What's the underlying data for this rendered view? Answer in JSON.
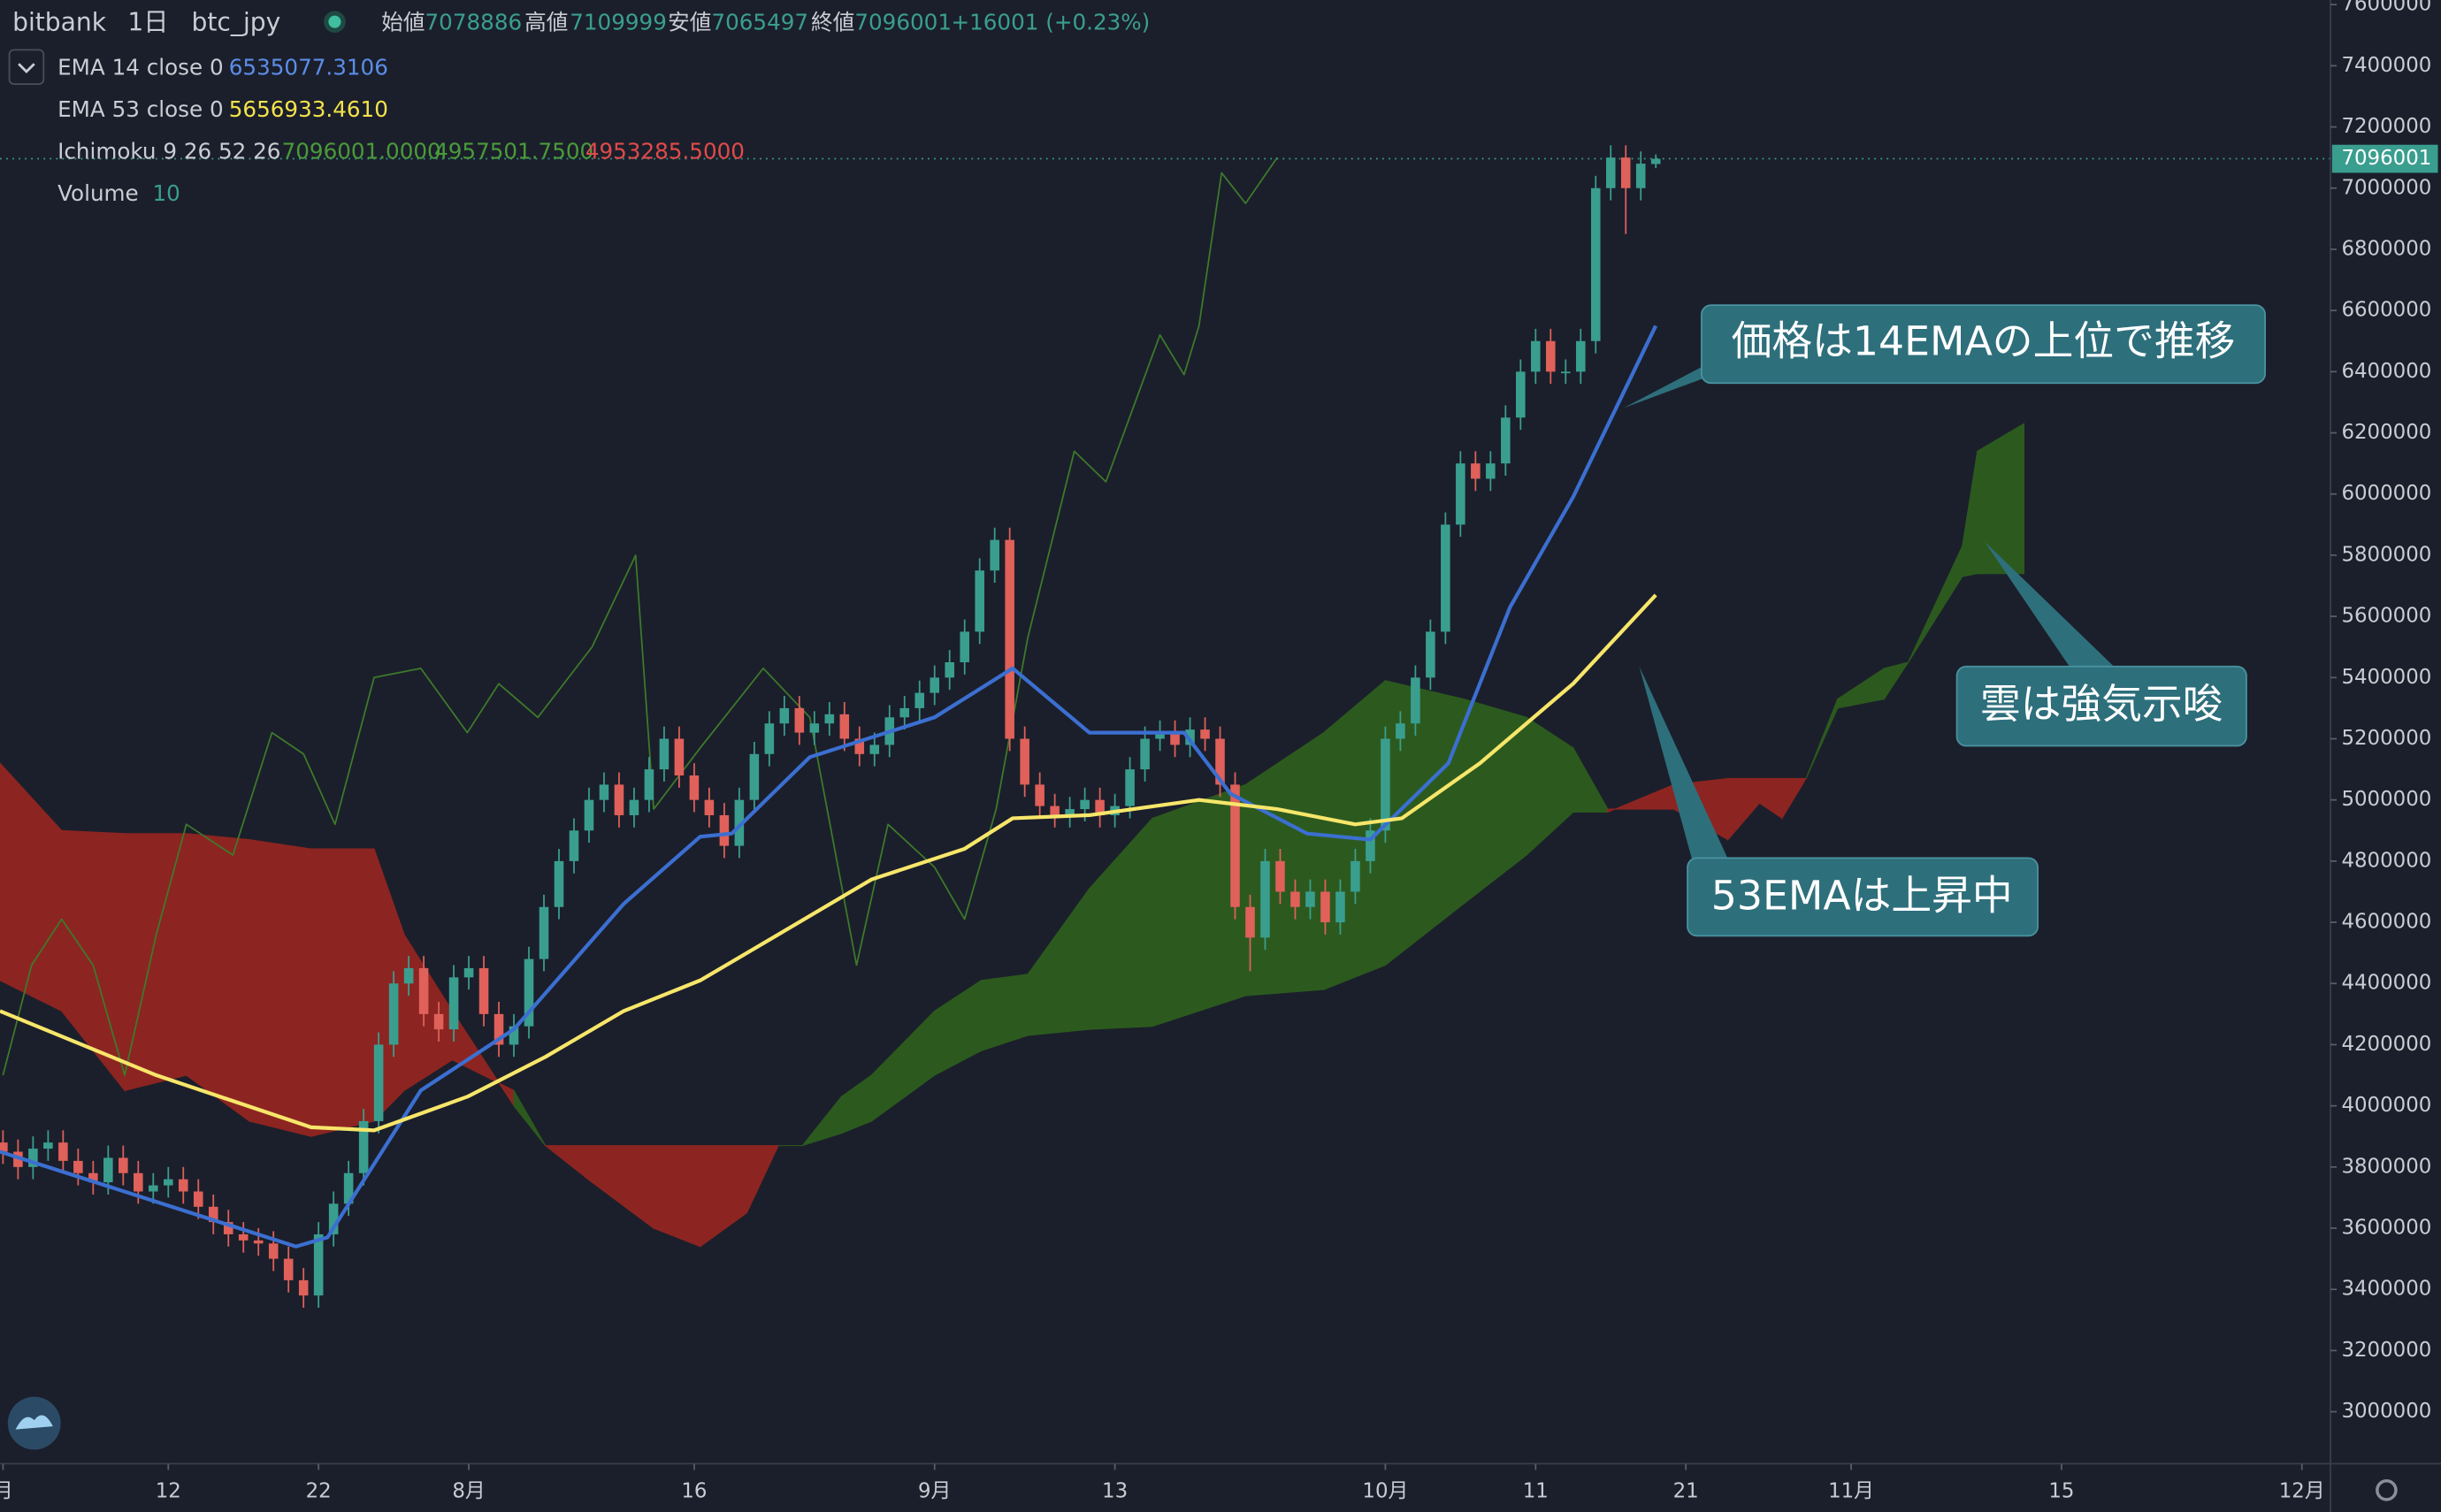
{
  "chart_data": {
    "type": "candlestick",
    "header": {
      "exchange": "bitbank",
      "interval": "1日",
      "symbol": "btc_jpy",
      "open_label": "始値",
      "open": "7078886",
      "high_label": "高値",
      "high": "7109999",
      "low_label": "安値",
      "low": "7065497",
      "close_label": "終値",
      "close": "7096001",
      "change": "+16001 (+0.23%)"
    },
    "legend": {
      "ema14": {
        "name": "EMA 14 close 0",
        "value": "6535077.3106"
      },
      "ema53": {
        "name": "EMA 53 close 0",
        "value": "5656933.4610"
      },
      "ichimoku": {
        "name": "Ichimoku 9 26 52 26",
        "values": [
          "7096001.0000",
          "4957501.7500",
          "4953285.5000"
        ]
      },
      "volume": {
        "name": "Volume",
        "value": "10"
      }
    },
    "up_color": "#3a9e8f",
    "down_color": "#e0605a",
    "x": [
      0,
      1,
      2,
      3,
      4,
      5,
      6,
      7,
      8,
      9,
      10,
      11,
      12,
      13,
      14,
      15,
      16,
      17,
      18,
      19,
      20,
      21,
      22,
      23,
      24,
      25,
      26,
      27,
      28,
      29,
      30,
      31,
      32,
      33,
      34,
      35,
      36,
      37,
      38,
      39,
      40,
      41,
      42,
      43,
      44,
      45,
      46,
      47,
      48,
      49,
      50,
      51,
      52,
      53,
      54,
      55,
      56,
      57,
      58,
      59,
      60,
      61,
      62,
      63,
      64,
      65,
      66,
      67,
      68,
      69,
      70,
      71,
      72,
      73,
      74,
      75,
      76,
      77,
      78,
      79,
      80,
      81,
      82,
      83,
      84,
      85,
      86,
      87,
      88,
      89,
      90,
      91,
      92,
      93,
      94,
      95,
      96,
      97,
      98,
      99,
      100,
      101,
      102,
      103,
      104,
      105,
      106,
      107,
      108,
      109,
      110
    ],
    "ohlc": [
      [
        3880000,
        3920000,
        3810000,
        3850000
      ],
      [
        3850000,
        3890000,
        3760000,
        3800000
      ],
      [
        3800000,
        3900000,
        3760000,
        3860000
      ],
      [
        3860000,
        3920000,
        3820000,
        3880000
      ],
      [
        3880000,
        3920000,
        3780000,
        3820000
      ],
      [
        3820000,
        3860000,
        3740000,
        3780000
      ],
      [
        3780000,
        3820000,
        3710000,
        3750000
      ],
      [
        3750000,
        3870000,
        3710000,
        3830000
      ],
      [
        3830000,
        3870000,
        3740000,
        3780000
      ],
      [
        3780000,
        3820000,
        3680000,
        3720000
      ],
      [
        3720000,
        3780000,
        3680000,
        3740000
      ],
      [
        3740000,
        3800000,
        3700000,
        3760000
      ],
      [
        3760000,
        3800000,
        3680000,
        3720000
      ],
      [
        3720000,
        3760000,
        3630000,
        3670000
      ],
      [
        3670000,
        3710000,
        3580000,
        3620000
      ],
      [
        3620000,
        3660000,
        3540000,
        3580000
      ],
      [
        3580000,
        3620000,
        3520000,
        3560000
      ],
      [
        3560000,
        3600000,
        3510000,
        3550000
      ],
      [
        3550000,
        3590000,
        3460000,
        3500000
      ],
      [
        3500000,
        3540000,
        3390000,
        3430000
      ],
      [
        3430000,
        3470000,
        3340000,
        3380000
      ],
      [
        3380000,
        3620000,
        3340000,
        3580000
      ],
      [
        3580000,
        3720000,
        3540000,
        3680000
      ],
      [
        3680000,
        3820000,
        3640000,
        3780000
      ],
      [
        3780000,
        3990000,
        3740000,
        3950000
      ],
      [
        3950000,
        4240000,
        3910000,
        4200000
      ],
      [
        4200000,
        4440000,
        4160000,
        4400000
      ],
      [
        4400000,
        4490000,
        4360000,
        4450000
      ],
      [
        4450000,
        4490000,
        4260000,
        4300000
      ],
      [
        4300000,
        4340000,
        4210000,
        4250000
      ],
      [
        4250000,
        4460000,
        4210000,
        4420000
      ],
      [
        4420000,
        4490000,
        4380000,
        4450000
      ],
      [
        4450000,
        4490000,
        4260000,
        4300000
      ],
      [
        4300000,
        4340000,
        4160000,
        4200000
      ],
      [
        4200000,
        4300000,
        4160000,
        4260000
      ],
      [
        4260000,
        4520000,
        4220000,
        4480000
      ],
      [
        4480000,
        4690000,
        4440000,
        4650000
      ],
      [
        4650000,
        4840000,
        4610000,
        4800000
      ],
      [
        4800000,
        4940000,
        4760000,
        4900000
      ],
      [
        4900000,
        5040000,
        4860000,
        5000000
      ],
      [
        5000000,
        5090000,
        4960000,
        5050000
      ],
      [
        5050000,
        5090000,
        4910000,
        4950000
      ],
      [
        4950000,
        5040000,
        4910000,
        5000000
      ],
      [
        5000000,
        5140000,
        4960000,
        5100000
      ],
      [
        5100000,
        5240000,
        5060000,
        5200000
      ],
      [
        5200000,
        5240000,
        5040000,
        5080000
      ],
      [
        5080000,
        5120000,
        4960000,
        5000000
      ],
      [
        5000000,
        5040000,
        4910000,
        4950000
      ],
      [
        4950000,
        4990000,
        4810000,
        4850000
      ],
      [
        4850000,
        5040000,
        4810000,
        5000000
      ],
      [
        5000000,
        5190000,
        4960000,
        5150000
      ],
      [
        5150000,
        5290000,
        5110000,
        5250000
      ],
      [
        5250000,
        5340000,
        5210000,
        5300000
      ],
      [
        5300000,
        5340000,
        5180000,
        5220000
      ],
      [
        5220000,
        5290000,
        5180000,
        5250000
      ],
      [
        5250000,
        5320000,
        5210000,
        5280000
      ],
      [
        5280000,
        5320000,
        5160000,
        5200000
      ],
      [
        5200000,
        5240000,
        5110000,
        5150000
      ],
      [
        5150000,
        5220000,
        5110000,
        5180000
      ],
      [
        5180000,
        5310000,
        5140000,
        5270000
      ],
      [
        5270000,
        5340000,
        5230000,
        5300000
      ],
      [
        5300000,
        5390000,
        5260000,
        5350000
      ],
      [
        5350000,
        5440000,
        5310000,
        5400000
      ],
      [
        5400000,
        5490000,
        5360000,
        5450000
      ],
      [
        5450000,
        5590000,
        5410000,
        5550000
      ],
      [
        5550000,
        5790000,
        5510000,
        5750000
      ],
      [
        5750000,
        5890000,
        5710000,
        5850000
      ],
      [
        5850000,
        5890000,
        5160000,
        5200000
      ],
      [
        5200000,
        5240000,
        5010000,
        5050000
      ],
      [
        5050000,
        5090000,
        4940000,
        4980000
      ],
      [
        4980000,
        5020000,
        4910000,
        4950000
      ],
      [
        4950000,
        5010000,
        4910000,
        4970000
      ],
      [
        4970000,
        5040000,
        4930000,
        5000000
      ],
      [
        5000000,
        5040000,
        4910000,
        4950000
      ],
      [
        4950000,
        5020000,
        4910000,
        4980000
      ],
      [
        4980000,
        5140000,
        4940000,
        5100000
      ],
      [
        5100000,
        5240000,
        5060000,
        5200000
      ],
      [
        5200000,
        5260000,
        5160000,
        5220000
      ],
      [
        5220000,
        5260000,
        5140000,
        5180000
      ],
      [
        5180000,
        5270000,
        5140000,
        5230000
      ],
      [
        5230000,
        5270000,
        5160000,
        5200000
      ],
      [
        5200000,
        5240000,
        5010000,
        5050000
      ],
      [
        5050000,
        5090000,
        4610000,
        4650000
      ],
      [
        4650000,
        4690000,
        4440000,
        4550000
      ],
      [
        4550000,
        4840000,
        4510000,
        4800000
      ],
      [
        4800000,
        4840000,
        4660000,
        4700000
      ],
      [
        4700000,
        4740000,
        4610000,
        4650000
      ],
      [
        4650000,
        4740000,
        4610000,
        4700000
      ],
      [
        4700000,
        4740000,
        4560000,
        4600000
      ],
      [
        4600000,
        4740000,
        4560000,
        4700000
      ],
      [
        4700000,
        4840000,
        4660000,
        4800000
      ],
      [
        4800000,
        4940000,
        4760000,
        4900000
      ],
      [
        4900000,
        5240000,
        4860000,
        5200000
      ],
      [
        5200000,
        5290000,
        5160000,
        5250000
      ],
      [
        5250000,
        5440000,
        5210000,
        5400000
      ],
      [
        5400000,
        5590000,
        5360000,
        5550000
      ],
      [
        5550000,
        5940000,
        5510000,
        5900000
      ],
      [
        5900000,
        6140000,
        5860000,
        6100000
      ],
      [
        6100000,
        6140000,
        6010000,
        6050000
      ],
      [
        6050000,
        6140000,
        6010000,
        6100000
      ],
      [
        6100000,
        6290000,
        6060000,
        6250000
      ],
      [
        6250000,
        6440000,
        6210000,
        6400000
      ],
      [
        6400000,
        6540000,
        6360000,
        6500000
      ],
      [
        6500000,
        6540000,
        6360000,
        6400000
      ],
      [
        6400000,
        6440000,
        6360000,
        6400000
      ],
      [
        6400000,
        6540000,
        6360000,
        6500000
      ],
      [
        6500000,
        7040000,
        6460000,
        7000000
      ],
      [
        7000000,
        7140000,
        6960000,
        7100000
      ],
      [
        7100000,
        7140000,
        6850000,
        7000000
      ],
      [
        7000000,
        7120000,
        6960000,
        7080000
      ],
      [
        7078886,
        7109999,
        7065497,
        7096001
      ]
    ],
    "lines": [
      {
        "name": "EMA 14 close 0",
        "color": "#3b6fd1",
        "x": [
          -0.2,
          19.5,
          21.6,
          27.8,
          34,
          41.3,
          46.4,
          48.5,
          53.7,
          62,
          67.2,
          72.3,
          78.6,
          81.7,
          86.8,
          91,
          96.2,
          100.3,
          104.5,
          110
        ],
        "values": [
          3850000,
          3540000,
          3570000,
          4050000,
          4250000,
          4660000,
          4880000,
          4890000,
          5140000,
          5270000,
          5430000,
          5220000,
          5220000,
          5020000,
          4890000,
          4870000,
          5120000,
          5630000,
          5990000,
          6550000
        ]
      },
      {
        "name": "EMA 53 close 0",
        "color": "#f7e66a",
        "x": [
          -0.2,
          10.2,
          20.5,
          24.7,
          30.9,
          36.1,
          41.3,
          46.4,
          51.6,
          57.8,
          64,
          67.2,
          72.3,
          79.6,
          84.8,
          90,
          93.1,
          98.3,
          104.5,
          110
        ],
        "values": [
          4310000,
          4100000,
          3930000,
          3920000,
          4030000,
          4160000,
          4310000,
          4410000,
          4560000,
          4740000,
          4840000,
          4940000,
          4950000,
          5000000,
          4970000,
          4920000,
          4940000,
          5120000,
          5380000,
          5670000
        ]
      }
    ],
    "cloud": {
      "up_color": "#2c5a1e",
      "down_color": "#8c2521",
      "x": [
        -0.2,
        3.9,
        8.1,
        12.2,
        16.4,
        20.5,
        24.7,
        26.7,
        29.9,
        34,
        36.1,
        39.2,
        43.3,
        46.4,
        49.5,
        51.6,
        53.2,
        55.8,
        57.8,
        62,
        65.1,
        68.2,
        72.3,
        76.5,
        82.7,
        87.9,
        92,
        97.2,
        101.4,
        104.5,
        106.8,
        111.2,
        114.8,
        116.9,
        118.4,
        120,
        122.1,
        125.2,
        126.8,
        130.4,
        131.4,
        134.5
      ],
      "span_a": [
        4410000,
        4310000,
        4050000,
        4100000,
        3950000,
        3900000,
        3950000,
        4050000,
        4150000,
        4050000,
        3870000,
        3750000,
        3600000,
        3540000,
        3650000,
        3870000,
        3870000,
        4030000,
        4100000,
        4310000,
        4410000,
        4430000,
        4710000,
        4940000,
        5050000,
        5220000,
        5390000,
        5330000,
        5270000,
        5170000,
        4970000,
        4970000,
        4870000,
        4990000,
        4940000,
        5070000,
        5330000,
        5430000,
        5450000,
        5830000,
        6140000,
        6230000
      ],
      "span_b": [
        5120000,
        4900000,
        4890000,
        4890000,
        4870000,
        4840000,
        4840000,
        4560000,
        4310000,
        4000000,
        3870000,
        3870000,
        3870000,
        3870000,
        3870000,
        3870000,
        3870000,
        3910000,
        3950000,
        4100000,
        4180000,
        4230000,
        4250000,
        4260000,
        4360000,
        4380000,
        4460000,
        4660000,
        4820000,
        4960000,
        4960000,
        5050000,
        5070000,
        5070000,
        5070000,
        5070000,
        5300000,
        5330000,
        5450000,
        5730000,
        5740000,
        5740000
      ]
    },
    "lagging": {
      "color": "#3d7a2a",
      "x": [
        0,
        1.9,
        3.9,
        6,
        8.1,
        10.2,
        12.2,
        15.3,
        17.9,
        20,
        22.1,
        24.7,
        27.8,
        30.9,
        33,
        35.6,
        39.2,
        42.1,
        43.3,
        46.4,
        50.6,
        53.7,
        56.8,
        58.9,
        62,
        64,
        66.1,
        68.2,
        71.3,
        73.4,
        77,
        78.6,
        79.6,
        81.1,
        82.7,
        84.8
      ],
      "values": [
        4100000,
        4460000,
        4610000,
        4460000,
        4100000,
        4560000,
        4920000,
        4820000,
        5220000,
        5150000,
        4920000,
        5400000,
        5430000,
        5220000,
        5380000,
        5270000,
        5500000,
        5800000,
        4970000,
        5170000,
        5430000,
        5270000,
        4460000,
        4920000,
        4780000,
        4610000,
        4970000,
        5530000,
        6140000,
        6040000,
        6520000,
        6390000,
        6550000,
        7050000,
        6950000,
        7100000
      ]
    },
    "xlim": [
      -0.2,
      154.9
    ],
    "xticks": [
      {
        "value": 0,
        "label": "月"
      },
      {
        "value": 11,
        "label": "12"
      },
      {
        "value": 21,
        "label": "22"
      },
      {
        "value": 31,
        "label": "8月"
      },
      {
        "value": 46,
        "label": "16"
      },
      {
        "value": 62,
        "label": "9月"
      },
      {
        "value": 74,
        "label": "13"
      },
      {
        "value": 92,
        "label": "10月"
      },
      {
        "value": 102,
        "label": "11"
      },
      {
        "value": 112,
        "label": "21"
      },
      {
        "value": 123,
        "label": "11月"
      },
      {
        "value": 137,
        "label": "15"
      },
      {
        "value": 153,
        "label": "12月"
      }
    ],
    "ylim": [
      2830000,
      7615000
    ],
    "yticks": [
      3000000,
      3200000,
      3400000,
      3600000,
      3800000,
      4000000,
      4200000,
      4400000,
      4600000,
      4800000,
      5000000,
      5200000,
      5400000,
      5600000,
      5800000,
      6000000,
      6200000,
      6400000,
      6600000,
      6800000,
      7000000,
      7200000,
      7400000,
      7600000
    ],
    "annotations": [
      "価格は14EMAの上位で推移",
      "雲は強気示唆",
      "53EMAは上昇中"
    ]
  }
}
